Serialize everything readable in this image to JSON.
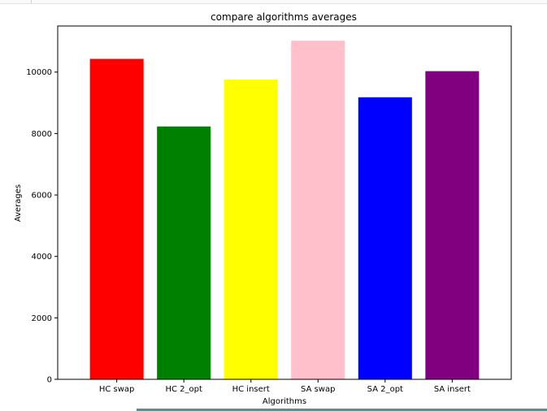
{
  "chart_data": {
    "type": "bar",
    "title": "compare algorithms averages",
    "xlabel": "Algorithms",
    "ylabel": "Averages",
    "categories": [
      "HC swap",
      "HC 2_opt",
      "HC insert",
      "SA swap",
      "SA 2_opt",
      "SA insert"
    ],
    "values": [
      10430,
      8230,
      9760,
      11020,
      9180,
      10030
    ],
    "colors": [
      "#ff0000",
      "#008000",
      "#ffff00",
      "#ffc0cb",
      "#0000ff",
      "#800080"
    ],
    "ylim": [
      0,
      11500
    ],
    "yticks": [
      0,
      2000,
      4000,
      6000,
      8000,
      10000
    ],
    "grid": false,
    "legend": "none"
  }
}
